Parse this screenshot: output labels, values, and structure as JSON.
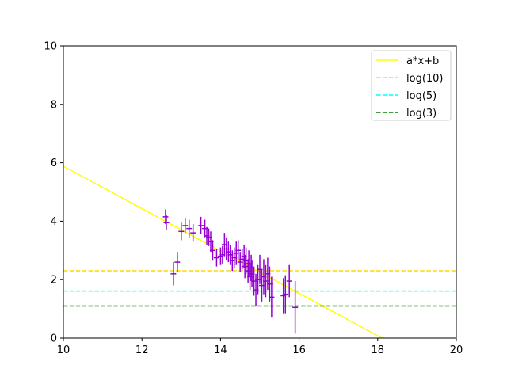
{
  "chart_data": {
    "type": "scatter",
    "title": "",
    "xlabel": "",
    "ylabel": "",
    "xlim": [
      10,
      20
    ],
    "ylim": [
      0,
      10
    ],
    "xticks": [
      "10",
      "12",
      "14",
      "16",
      "18",
      "20"
    ],
    "yticks": [
      "0",
      "2",
      "4",
      "6",
      "8",
      "10"
    ],
    "grid": false,
    "legend_position": "top-right",
    "lines": [
      {
        "name": "a*x+b",
        "style": "solid",
        "color": "#ffff00",
        "slope": -0.725,
        "intercept": 13.13
      },
      {
        "name": "log(10)",
        "style": "dashed",
        "color": "#ffd700",
        "y": 2.303
      },
      {
        "name": "log(5)",
        "style": "dashed",
        "color": "#00ffff",
        "y": 1.609
      },
      {
        "name": "log(3)",
        "style": "dashed",
        "color": "#008000",
        "y": 1.099
      }
    ],
    "points": {
      "color": "#9400d3",
      "x": [
        12.6,
        12.62,
        12.8,
        12.9,
        13.0,
        13.1,
        13.2,
        13.3,
        13.5,
        13.6,
        13.65,
        13.7,
        13.75,
        13.8,
        13.9,
        14.0,
        14.05,
        14.1,
        14.15,
        14.2,
        14.25,
        14.3,
        14.35,
        14.4,
        14.45,
        14.5,
        14.55,
        14.6,
        14.62,
        14.65,
        14.7,
        14.72,
        14.75,
        14.78,
        14.8,
        14.85,
        14.9,
        14.95,
        15.0,
        15.05,
        15.1,
        15.15,
        15.2,
        15.25,
        15.3,
        15.6,
        15.65,
        15.75,
        15.9
      ],
      "y": [
        4.15,
        3.95,
        2.2,
        2.6,
        3.65,
        3.85,
        3.75,
        3.6,
        3.85,
        3.75,
        3.5,
        3.45,
        3.3,
        3.0,
        2.75,
        2.8,
        2.85,
        3.2,
        3.05,
        2.95,
        2.85,
        2.65,
        2.75,
        2.9,
        3.0,
        2.6,
        2.7,
        2.8,
        2.45,
        2.65,
        2.3,
        2.55,
        2.1,
        2.4,
        2.2,
        1.95,
        1.65,
        2.0,
        2.35,
        1.8,
        2.1,
        1.95,
        2.2,
        1.85,
        1.4,
        1.45,
        1.5,
        1.95,
        1.05
      ],
      "yerr": [
        0.25,
        0.25,
        0.4,
        0.35,
        0.3,
        0.25,
        0.3,
        0.3,
        0.3,
        0.3,
        0.3,
        0.3,
        0.35,
        0.35,
        0.3,
        0.3,
        0.3,
        0.4,
        0.4,
        0.35,
        0.35,
        0.35,
        0.35,
        0.4,
        0.35,
        0.35,
        0.35,
        0.4,
        0.4,
        0.45,
        0.4,
        0.45,
        0.45,
        0.45,
        0.45,
        0.5,
        0.55,
        0.5,
        0.5,
        0.55,
        0.6,
        0.55,
        0.55,
        0.6,
        0.7,
        0.6,
        0.65,
        0.55,
        0.9
      ],
      "xerr": [
        0.07,
        0.07,
        0.07,
        0.07,
        0.07,
        0.07,
        0.07,
        0.07,
        0.07,
        0.07,
        0.07,
        0.07,
        0.07,
        0.07,
        0.07,
        0.07,
        0.07,
        0.07,
        0.07,
        0.07,
        0.07,
        0.07,
        0.07,
        0.07,
        0.07,
        0.07,
        0.07,
        0.07,
        0.07,
        0.07,
        0.07,
        0.07,
        0.07,
        0.07,
        0.07,
        0.07,
        0.07,
        0.07,
        0.07,
        0.07,
        0.07,
        0.07,
        0.07,
        0.07,
        0.07,
        0.07,
        0.07,
        0.07,
        0.07
      ]
    }
  }
}
